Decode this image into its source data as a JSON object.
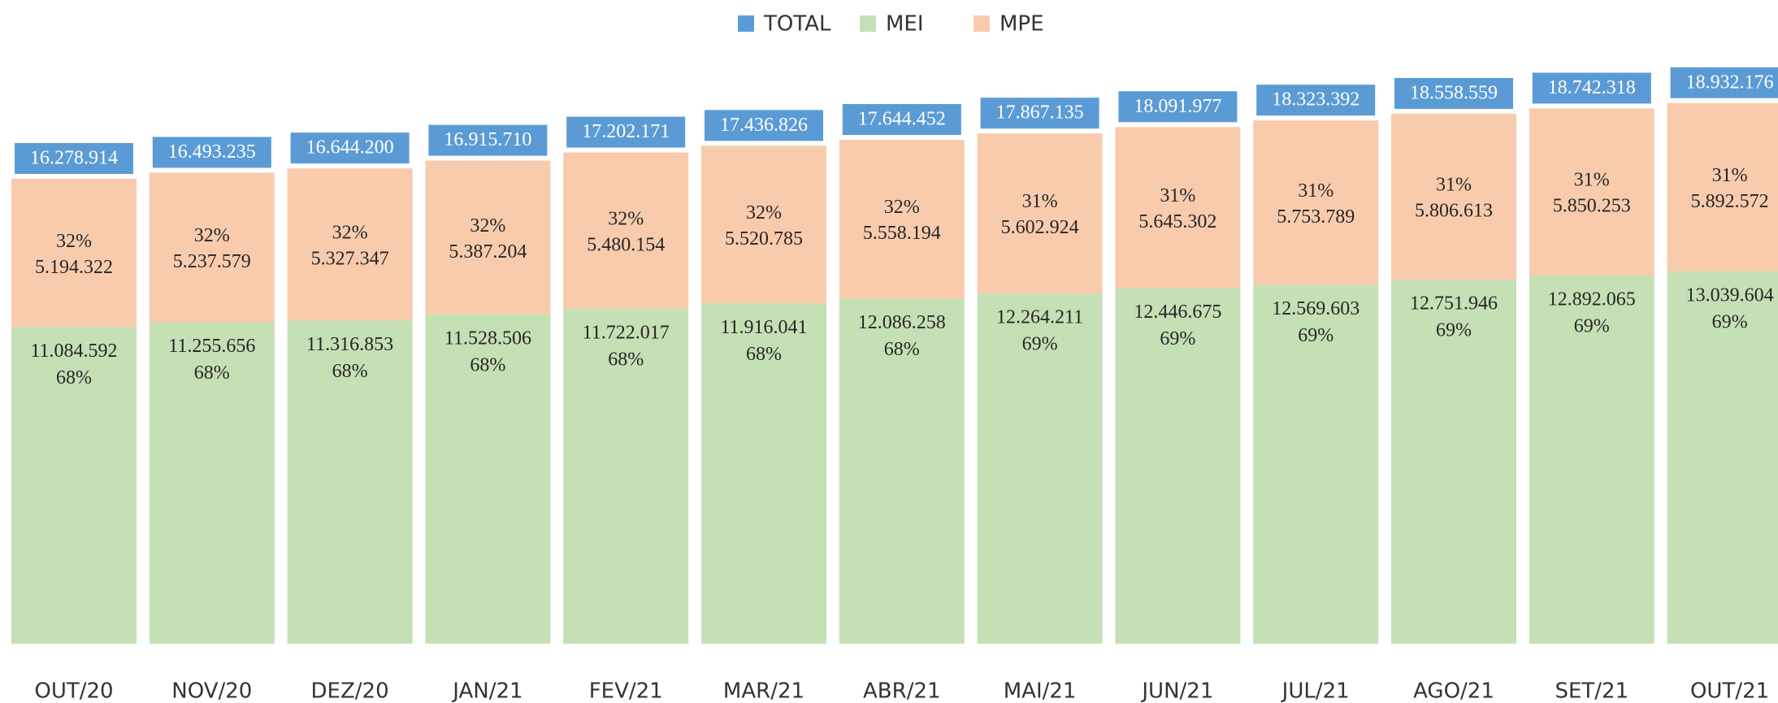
{
  "chart_data": {
    "type": "stacked_bar",
    "categories": [
      "OUT/20",
      "NOV/20",
      "DEZ/20",
      "JAN/21",
      "FEV/21",
      "MAR/21",
      "ABR/21",
      "MAI/21",
      "JUN/21",
      "JUL/21",
      "AGO/21",
      "SET/21",
      "OUT/21"
    ],
    "ylim": [
      0,
      22000000
    ],
    "legend": "top",
    "series": [
      {
        "name": "TOTAL",
        "color": "#5b9bd5",
        "label_box": true,
        "values": [
          16278914,
          16493235,
          16644200,
          16915710,
          17202171,
          17436826,
          17644452,
          17867135,
          18091977,
          18323392,
          18558559,
          18742318,
          18932176
        ],
        "value_labels": [
          "16.278.914",
          "16.493.235",
          "16.644.200",
          "16.915.710",
          "17.202.171",
          "17.436.826",
          "17.644.452",
          "17.867.135",
          "18.091.977",
          "18.323.392",
          "18.558.559",
          "18.742.318",
          "18.932.176"
        ]
      },
      {
        "name": "MEI",
        "color": "#c5e0b4",
        "values": [
          11084592,
          11255656,
          11316853,
          11528506,
          11722017,
          11916041,
          12086258,
          12264211,
          12446675,
          12569603,
          12751946,
          12892065,
          13039604
        ],
        "value_labels": [
          "11.084.592",
          "11.255.656",
          "11.316.853",
          "11.528.506",
          "11.722.017",
          "11.916.041",
          "12.086.258",
          "12.264.211",
          "12.446.675",
          "12.569.603",
          "12.751.946",
          "12.892.065",
          "13.039.604"
        ],
        "shares": [
          68,
          68,
          68,
          68,
          68,
          68,
          68,
          69,
          69,
          69,
          69,
          69,
          69
        ],
        "share_labels": [
          "68%",
          "68%",
          "68%",
          "68%",
          "68%",
          "68%",
          "68%",
          "69%",
          "69%",
          "69%",
          "69%",
          "69%",
          "69%"
        ]
      },
      {
        "name": "MPE",
        "color": "#f8cbad",
        "values": [
          5194322,
          5237579,
          5327347,
          5387204,
          5480154,
          5520785,
          5558194,
          5602924,
          5645302,
          5753789,
          5806613,
          5850253,
          5892572
        ],
        "value_labels": [
          "5.194.322",
          "5.237.579",
          "5.327.347",
          "5.387.204",
          "5.480.154",
          "5.520.785",
          "5.558.194",
          "5.602.924",
          "5.645.302",
          "5.753.789",
          "5.806.613",
          "5.850.253",
          "5.892.572"
        ],
        "shares": [
          32,
          32,
          32,
          32,
          32,
          32,
          32,
          31,
          31,
          31,
          31,
          31,
          31
        ],
        "share_labels": [
          "32%",
          "32%",
          "32%",
          "32%",
          "32%",
          "32%",
          "32%",
          "31%",
          "31%",
          "31%",
          "31%",
          "31%",
          "31%"
        ]
      }
    ]
  }
}
